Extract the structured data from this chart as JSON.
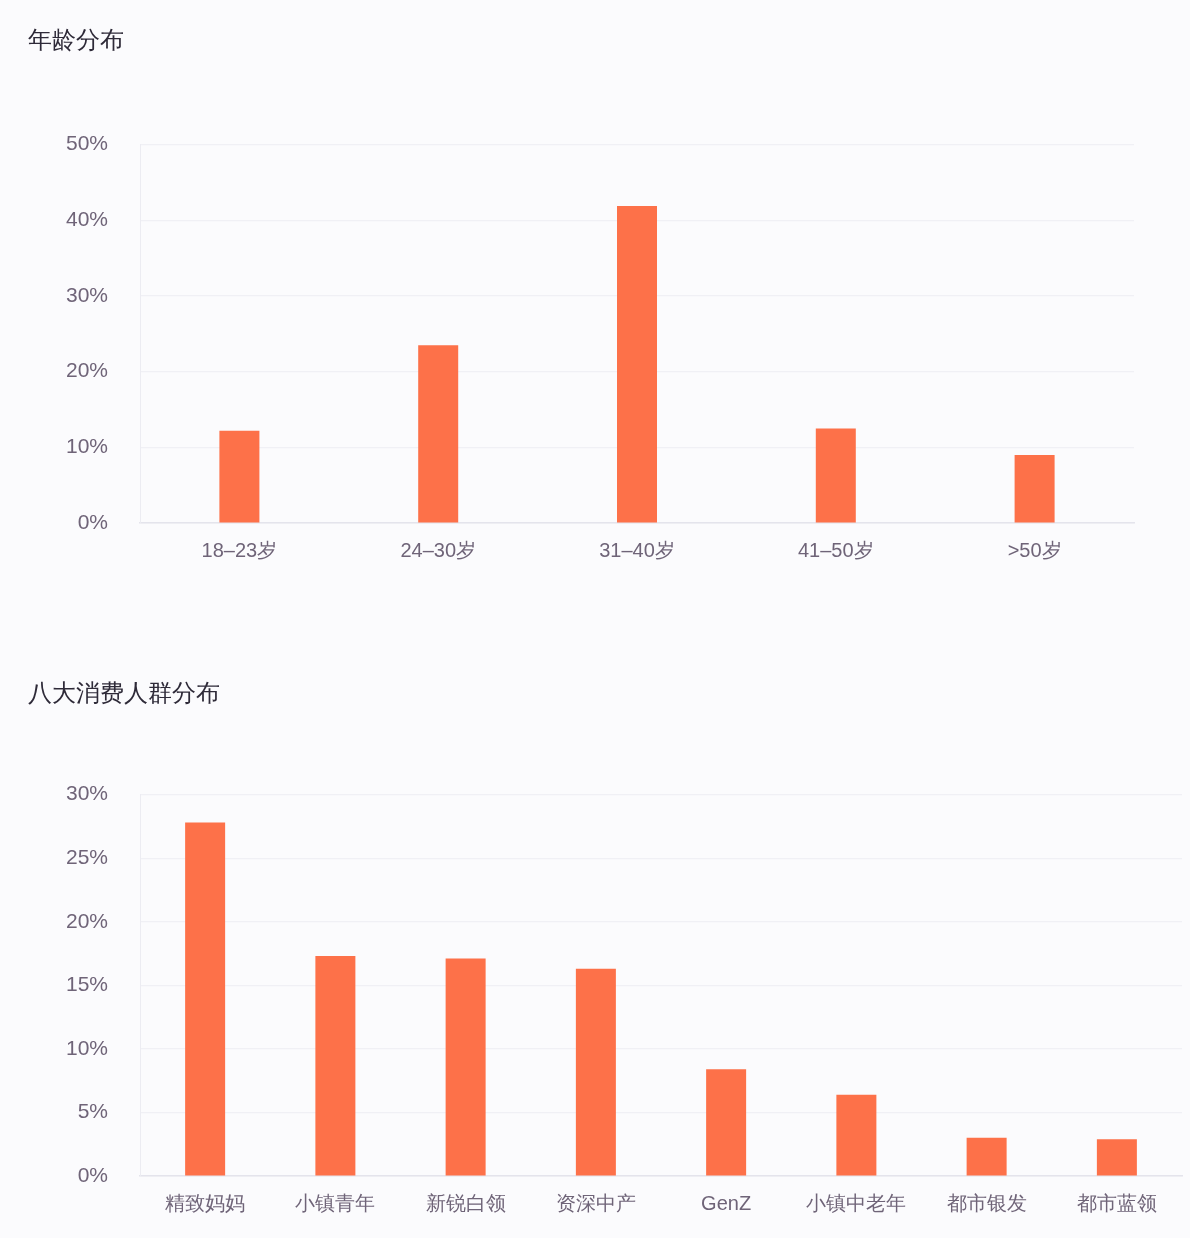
{
  "chart_data": [
    {
      "type": "bar",
      "title": "年龄分布",
      "categories": [
        "18–23岁",
        "24–30岁",
        "31–40岁",
        "41–50岁",
        ">50岁"
      ],
      "values": [
        12.2,
        23.5,
        41.9,
        12.5,
        9.0
      ],
      "color": "#fd7149",
      "ylim": [
        0,
        50
      ],
      "yticks": [
        {
          "value": 0,
          "label": "0%"
        },
        {
          "value": 10,
          "label": "10%"
        },
        {
          "value": 20,
          "label": "20%"
        },
        {
          "value": 30,
          "label": "30%"
        },
        {
          "value": 40,
          "label": "40%"
        },
        {
          "value": 50,
          "label": "50%"
        }
      ],
      "grid": "y"
    },
    {
      "type": "bar",
      "title": "八大消费人群分布",
      "categories": [
        "精致妈妈",
        "小镇青年",
        "新锐白领",
        "资深中产",
        "GenZ",
        "小镇中老年",
        "都市银发",
        "都市蓝领"
      ],
      "values": [
        27.8,
        17.3,
        17.1,
        16.3,
        8.4,
        6.4,
        3.0,
        2.9
      ],
      "color": "#fd7149",
      "ylim": [
        0,
        30
      ],
      "yticks": [
        {
          "value": 0,
          "label": "0%"
        },
        {
          "value": 5,
          "label": "5%"
        },
        {
          "value": 10,
          "label": "10%"
        },
        {
          "value": 15,
          "label": "15%"
        },
        {
          "value": 20,
          "label": "20%"
        },
        {
          "value": 25,
          "label": "25%"
        },
        {
          "value": 30,
          "label": "30%"
        }
      ],
      "grid": "y"
    }
  ]
}
